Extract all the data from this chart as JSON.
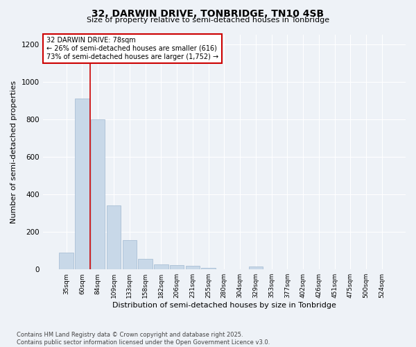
{
  "title1": "32, DARWIN DRIVE, TONBRIDGE, TN10 4SB",
  "title2": "Size of property relative to semi-detached houses in Tonbridge",
  "xlabel": "Distribution of semi-detached houses by size in Tonbridge",
  "ylabel": "Number of semi-detached properties",
  "categories": [
    "35sqm",
    "60sqm",
    "84sqm",
    "109sqm",
    "133sqm",
    "158sqm",
    "182sqm",
    "206sqm",
    "231sqm",
    "255sqm",
    "280sqm",
    "304sqm",
    "329sqm",
    "353sqm",
    "377sqm",
    "402sqm",
    "426sqm",
    "451sqm",
    "475sqm",
    "500sqm",
    "524sqm"
  ],
  "values": [
    90,
    910,
    800,
    340,
    155,
    58,
    27,
    22,
    20,
    10,
    0,
    0,
    14,
    0,
    0,
    0,
    0,
    0,
    0,
    0,
    0
  ],
  "bar_color": "#c8d8e8",
  "bar_edgecolor": "#a0b8d0",
  "vline_color": "#cc0000",
  "annotation_title": "32 DARWIN DRIVE: 78sqm",
  "annotation_line2": "← 26% of semi-detached houses are smaller (616)",
  "annotation_line3": "73% of semi-detached houses are larger (1,752) →",
  "annotation_box_color": "#cc0000",
  "ylim": [
    0,
    1250
  ],
  "yticks": [
    0,
    200,
    400,
    600,
    800,
    1000,
    1200
  ],
  "footer1": "Contains HM Land Registry data © Crown copyright and database right 2025.",
  "footer2": "Contains public sector information licensed under the Open Government Licence v3.0.",
  "bg_color": "#eef2f7",
  "plot_bg_color": "#eef2f7"
}
